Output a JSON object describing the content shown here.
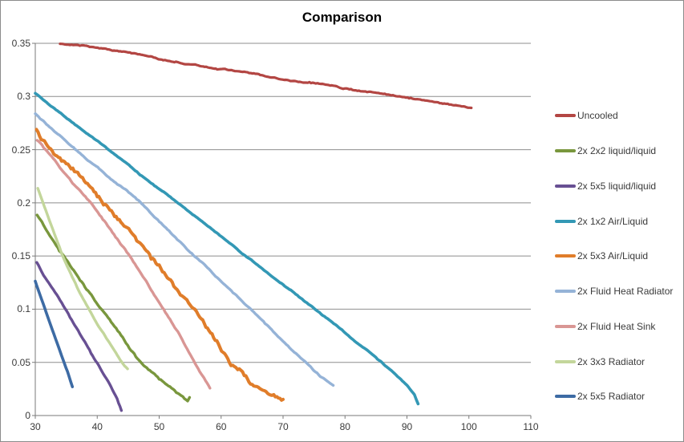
{
  "chart_data": {
    "type": "line",
    "title": "Comparison",
    "xlabel": "",
    "ylabel": "",
    "x_range": [
      30,
      110
    ],
    "y_range": [
      0,
      0.35
    ],
    "grid": "horizontal",
    "legend_position": "right",
    "x_ticks": [
      {
        "v": 30,
        "label": "30"
      },
      {
        "v": 40,
        "label": "40"
      },
      {
        "v": 50,
        "label": "50"
      },
      {
        "v": 60,
        "label": "60"
      },
      {
        "v": 70,
        "label": "70"
      },
      {
        "v": 80,
        "label": "80"
      },
      {
        "v": 90,
        "label": "90"
      },
      {
        "v": 100,
        "label": "100"
      },
      {
        "v": 110,
        "label": "110"
      }
    ],
    "y_ticks": [
      {
        "v": 0.35,
        "label": "0.35"
      },
      {
        "v": 0.3,
        "label": "0.3"
      },
      {
        "v": 0.25,
        "label": "0.25"
      },
      {
        "v": 0.2,
        "label": "0.2"
      },
      {
        "v": 0.15,
        "label": "0.15"
      },
      {
        "v": 0.1,
        "label": "0.1"
      },
      {
        "v": 0.05,
        "label": "0.05"
      },
      {
        "v": 0,
        "label": "0"
      }
    ],
    "series": [
      {
        "name": "Uncooled",
        "color": "#B34643",
        "width": 3.2,
        "noise": 0.0009,
        "points": [
          [
            34,
            0.3495
          ],
          [
            38,
            0.3485
          ],
          [
            44,
            0.3425
          ],
          [
            54,
            0.3315
          ],
          [
            64,
            0.322
          ],
          [
            74,
            0.313
          ],
          [
            82,
            0.3055
          ],
          [
            88,
            0.3
          ],
          [
            94,
            0.2945
          ],
          [
            100.4,
            0.2885
          ]
        ]
      },
      {
        "name": "2x 2x2 liquid/liquid",
        "color": "#79973D",
        "width": 3.4,
        "noise": 0.0013,
        "points": [
          [
            30.3,
            0.188
          ],
          [
            34.4,
            0.151
          ],
          [
            38,
            0.121
          ],
          [
            42,
            0.089
          ],
          [
            46.5,
            0.053
          ],
          [
            50,
            0.0335
          ],
          [
            52.5,
            0.0225
          ],
          [
            54.6,
            0.0125
          ],
          [
            54.9,
            0.0165
          ]
        ]
      },
      {
        "name": "2x 5x5 liquid/liquid",
        "color": "#685093",
        "width": 3.4,
        "noise": 0.0012,
        "points": [
          [
            30.25,
            0.1435
          ],
          [
            34,
            0.1075
          ],
          [
            38,
            0.068
          ],
          [
            40,
            0.049
          ],
          [
            42,
            0.0285
          ],
          [
            43.2,
            0.0155
          ],
          [
            43.9,
            0.005
          ]
        ]
      },
      {
        "name": "2x 1x2 Air/Liquid",
        "color": "#3398B5",
        "width": 3.6,
        "noise": 0.0006,
        "points": [
          [
            30,
            0.303
          ],
          [
            40,
            0.258
          ],
          [
            50,
            0.213
          ],
          [
            60,
            0.168
          ],
          [
            70,
            0.123
          ],
          [
            80,
            0.078
          ],
          [
            85.5,
            0.052
          ],
          [
            88,
            0.04
          ],
          [
            90,
            0.0285
          ],
          [
            91.2,
            0.019
          ],
          [
            91.8,
            0.0105
          ]
        ]
      },
      {
        "name": "2x 5x3 Air/Liquid",
        "color": "#E07D2A",
        "width": 4,
        "noise": 0.0035,
        "points": [
          [
            30.2,
            0.268
          ],
          [
            35,
            0.2365
          ],
          [
            40,
            0.204
          ],
          [
            45.6,
            0.169
          ],
          [
            50,
            0.1375
          ],
          [
            55,
            0.101
          ],
          [
            58.8,
            0.0745
          ],
          [
            61.6,
            0.051
          ],
          [
            64,
            0.0365
          ],
          [
            67,
            0.0235
          ],
          [
            70,
            0.0155
          ]
        ]
      },
      {
        "name": "2x Fluid Heat Radiator",
        "color": "#95B3D7",
        "width": 3.4,
        "noise": 0.0008,
        "points": [
          [
            30,
            0.284
          ],
          [
            38,
            0.2425
          ],
          [
            45.6,
            0.2075
          ],
          [
            55,
            0.154
          ],
          [
            65,
            0.098
          ],
          [
            70,
            0.0705
          ],
          [
            73.4,
            0.051
          ],
          [
            76,
            0.0365
          ],
          [
            78.1,
            0.0275
          ]
        ]
      },
      {
        "name": "2x Fluid Heat Sink",
        "color": "#D99694",
        "width": 3.4,
        "noise": 0.0012,
        "points": [
          [
            30.3,
            0.259
          ],
          [
            35,
            0.2265
          ],
          [
            39.1,
            0.198
          ],
          [
            45.3,
            0.1485
          ],
          [
            50,
            0.1075
          ],
          [
            53,
            0.0795
          ],
          [
            55.8,
            0.05
          ],
          [
            57,
            0.0375
          ],
          [
            58.2,
            0.0265
          ]
        ]
      },
      {
        "name": "2x 3x3 Radiator",
        "color": "#C3D69B",
        "width": 3.4,
        "noise": 0.0006,
        "points": [
          [
            30.4,
            0.214
          ],
          [
            32,
            0.188
          ],
          [
            34.4,
            0.1505
          ],
          [
            37,
            0.118
          ],
          [
            40,
            0.0865
          ],
          [
            42.5,
            0.0635
          ],
          [
            44.2,
            0.048
          ],
          [
            44.9,
            0.0435
          ]
        ]
      },
      {
        "name": "2x 5x5 Radiator",
        "color": "#3D6BA4",
        "width": 3.6,
        "noise": 0.0005,
        "points": [
          [
            30,
            0.1265
          ],
          [
            32,
            0.0935
          ],
          [
            34,
            0.0605
          ],
          [
            35.2,
            0.0415
          ],
          [
            36,
            0.0275
          ]
        ]
      }
    ],
    "style": {
      "gridline_color": "#8E8E8E",
      "axis_color": "#7A7A7A",
      "tick_text_color": "#3A3A3A",
      "background": "#FFFFFF"
    }
  }
}
